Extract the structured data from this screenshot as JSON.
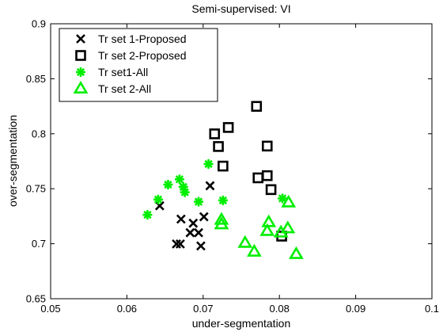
{
  "chart_data": {
    "type": "scatter",
    "title": "Semi-supervised: VI",
    "xlabel": "under-segmentation",
    "ylabel": "over-segmentation",
    "xlim": [
      0.05,
      0.1
    ],
    "ylim": [
      0.65,
      0.9
    ],
    "xticks": [
      0.05,
      0.06,
      0.07,
      0.08,
      0.09,
      0.1
    ],
    "xtick_labels": [
      "0.05",
      "0.06",
      "0.07",
      "0.08",
      "0.09",
      "0.1"
    ],
    "yticks": [
      0.65,
      0.7,
      0.75,
      0.8,
      0.85,
      0.9
    ],
    "ytick_labels": [
      "0.65",
      "0.7",
      "0.75",
      "0.8",
      "0.85",
      "0.9"
    ],
    "grid": false,
    "legend_position": "top-left",
    "series": [
      {
        "name": "Tr set 1-Proposed",
        "marker": "x",
        "color": "#000000",
        "points": [
          [
            0.0643,
            0.7345
          ],
          [
            0.0671,
            0.7224
          ],
          [
            0.0687,
            0.7187
          ],
          [
            0.0701,
            0.7245
          ],
          [
            0.0709,
            0.7527
          ],
          [
            0.0694,
            0.71
          ],
          [
            0.0683,
            0.71
          ],
          [
            0.0665,
            0.6998
          ],
          [
            0.067,
            0.6998
          ],
          [
            0.0697,
            0.698
          ]
        ]
      },
      {
        "name": "Tr set 2-Proposed",
        "marker": "square",
        "color": "#000000",
        "points": [
          [
            0.0715,
            0.7999
          ],
          [
            0.072,
            0.7884
          ],
          [
            0.0733,
            0.8057
          ],
          [
            0.0726,
            0.7706
          ],
          [
            0.077,
            0.8249
          ],
          [
            0.0784,
            0.7888
          ],
          [
            0.0772,
            0.7599
          ],
          [
            0.0784,
            0.7619
          ],
          [
            0.0789,
            0.7492
          ],
          [
            0.0803,
            0.7069
          ]
        ]
      },
      {
        "name": "Tr set1-All",
        "marker": "asterisk",
        "color": "#00ee00",
        "points": [
          [
            0.0627,
            0.7263
          ],
          [
            0.0641,
            0.7402
          ],
          [
            0.0654,
            0.7537
          ],
          [
            0.0669,
            0.7586
          ],
          [
            0.0674,
            0.7517
          ],
          [
            0.0676,
            0.7468
          ],
          [
            0.0694,
            0.7382
          ],
          [
            0.0707,
            0.7725
          ],
          [
            0.0726,
            0.7394
          ],
          [
            0.0804,
            0.7412
          ]
        ]
      },
      {
        "name": "Tr set 2-All",
        "marker": "triangle",
        "color": "#00ee00",
        "points": [
          [
            0.0724,
            0.7216
          ],
          [
            0.0724,
            0.7174
          ],
          [
            0.0755,
            0.7006
          ],
          [
            0.0767,
            0.6926
          ],
          [
            0.0786,
            0.7194
          ],
          [
            0.0784,
            0.7114
          ],
          [
            0.0812,
            0.7373
          ],
          [
            0.0811,
            0.7138
          ],
          [
            0.0802,
            0.71
          ],
          [
            0.0822,
            0.6904
          ]
        ]
      }
    ]
  }
}
